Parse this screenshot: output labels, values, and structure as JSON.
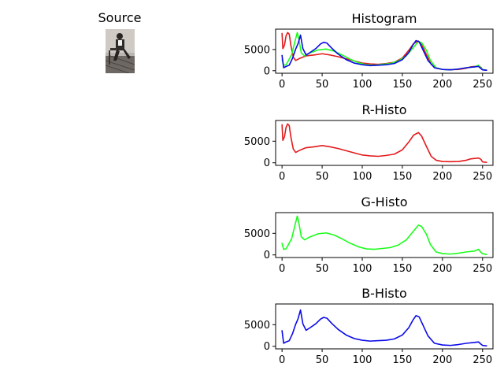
{
  "source": {
    "title": "Source"
  },
  "colors": {
    "red": "#e31a1c",
    "green": "#1aff1a",
    "blue": "#0a0ae8",
    "axis": "#000000"
  },
  "chart_data": [
    {
      "type": "line",
      "title": "Histogram",
      "xlim": [
        -8,
        263
      ],
      "ylim": [
        -600,
        9800
      ],
      "xticks": [
        0,
        50,
        100,
        150,
        200,
        250
      ],
      "yticks": [
        0,
        5000
      ],
      "series": [
        {
          "color": "red",
          "points": [
            [
              0,
              8800
            ],
            [
              1,
              5200
            ],
            [
              3,
              6000
            ],
            [
              5,
              8200
            ],
            [
              7,
              9000
            ],
            [
              9,
              8600
            ],
            [
              11,
              6000
            ],
            [
              14,
              3200
            ],
            [
              17,
              2400
            ],
            [
              22,
              2900
            ],
            [
              30,
              3500
            ],
            [
              40,
              3700
            ],
            [
              50,
              4000
            ],
            [
              60,
              3700
            ],
            [
              70,
              3300
            ],
            [
              80,
              2800
            ],
            [
              90,
              2300
            ],
            [
              100,
              1800
            ],
            [
              110,
              1600
            ],
            [
              120,
              1500
            ],
            [
              130,
              1700
            ],
            [
              140,
              2000
            ],
            [
              150,
              3000
            ],
            [
              158,
              4800
            ],
            [
              164,
              6400
            ],
            [
              170,
              7000
            ],
            [
              174,
              6200
            ],
            [
              180,
              3800
            ],
            [
              186,
              1500
            ],
            [
              192,
              600
            ],
            [
              200,
              300
            ],
            [
              210,
              250
            ],
            [
              220,
              300
            ],
            [
              230,
              600
            ],
            [
              235,
              900
            ],
            [
              240,
              1000
            ],
            [
              245,
              1100
            ],
            [
              248,
              800
            ],
            [
              250,
              200
            ],
            [
              255,
              100
            ]
          ]
        },
        {
          "color": "green",
          "points": [
            [
              0,
              2700
            ],
            [
              2,
              1300
            ],
            [
              5,
              1400
            ],
            [
              8,
              2400
            ],
            [
              12,
              3800
            ],
            [
              16,
              6800
            ],
            [
              19,
              9000
            ],
            [
              21,
              7400
            ],
            [
              24,
              4200
            ],
            [
              28,
              3500
            ],
            [
              35,
              4200
            ],
            [
              45,
              4900
            ],
            [
              55,
              5100
            ],
            [
              65,
              4600
            ],
            [
              75,
              3700
            ],
            [
              85,
              2700
            ],
            [
              95,
              1900
            ],
            [
              105,
              1400
            ],
            [
              115,
              1300
            ],
            [
              125,
              1500
            ],
            [
              135,
              1700
            ],
            [
              145,
              2300
            ],
            [
              155,
              3500
            ],
            [
              163,
              5300
            ],
            [
              170,
              6900
            ],
            [
              174,
              6600
            ],
            [
              180,
              4800
            ],
            [
              185,
              2400
            ],
            [
              192,
              700
            ],
            [
              200,
              300
            ],
            [
              210,
              200
            ],
            [
              220,
              400
            ],
            [
              230,
              700
            ],
            [
              240,
              900
            ],
            [
              245,
              1300
            ],
            [
              248,
              600
            ],
            [
              250,
              300
            ],
            [
              255,
              100
            ]
          ]
        },
        {
          "color": "blue",
          "points": [
            [
              0,
              3600
            ],
            [
              2,
              700
            ],
            [
              5,
              1000
            ],
            [
              9,
              1300
            ],
            [
              13,
              2900
            ],
            [
              17,
              5100
            ],
            [
              20,
              6400
            ],
            [
              23,
              8400
            ],
            [
              26,
              5200
            ],
            [
              30,
              3700
            ],
            [
              35,
              4300
            ],
            [
              42,
              5200
            ],
            [
              48,
              6300
            ],
            [
              52,
              6700
            ],
            [
              56,
              6500
            ],
            [
              62,
              5300
            ],
            [
              70,
              3900
            ],
            [
              80,
              2600
            ],
            [
              90,
              1800
            ],
            [
              100,
              1400
            ],
            [
              110,
              1200
            ],
            [
              120,
              1300
            ],
            [
              130,
              1400
            ],
            [
              140,
              1700
            ],
            [
              150,
              2600
            ],
            [
              158,
              4300
            ],
            [
              163,
              6000
            ],
            [
              167,
              7100
            ],
            [
              171,
              6800
            ],
            [
              176,
              4800
            ],
            [
              182,
              2400
            ],
            [
              190,
              700
            ],
            [
              200,
              300
            ],
            [
              210,
              200
            ],
            [
              220,
              400
            ],
            [
              230,
              700
            ],
            [
              240,
              900
            ],
            [
              245,
              1000
            ],
            [
              248,
              500
            ],
            [
              250,
              200
            ],
            [
              255,
              100
            ]
          ]
        }
      ]
    },
    {
      "type": "line",
      "title": "R-Histo",
      "xlim": [
        -8,
        263
      ],
      "ylim": [
        -600,
        9800
      ],
      "xticks": [
        0,
        50,
        100,
        150,
        200,
        250
      ],
      "yticks": [
        0,
        5000
      ],
      "series": [
        {
          "color": "red",
          "points": [
            [
              0,
              8800
            ],
            [
              1,
              5200
            ],
            [
              3,
              6000
            ],
            [
              5,
              8200
            ],
            [
              7,
              9000
            ],
            [
              9,
              8600
            ],
            [
              11,
              6000
            ],
            [
              14,
              3200
            ],
            [
              17,
              2400
            ],
            [
              22,
              2900
            ],
            [
              30,
              3500
            ],
            [
              40,
              3700
            ],
            [
              50,
              4000
            ],
            [
              60,
              3700
            ],
            [
              70,
              3300
            ],
            [
              80,
              2800
            ],
            [
              90,
              2300
            ],
            [
              100,
              1800
            ],
            [
              110,
              1600
            ],
            [
              120,
              1500
            ],
            [
              130,
              1700
            ],
            [
              140,
              2000
            ],
            [
              150,
              3000
            ],
            [
              158,
              4800
            ],
            [
              164,
              6400
            ],
            [
              170,
              7000
            ],
            [
              174,
              6200
            ],
            [
              180,
              3800
            ],
            [
              186,
              1500
            ],
            [
              192,
              600
            ],
            [
              200,
              300
            ],
            [
              210,
              250
            ],
            [
              220,
              300
            ],
            [
              230,
              600
            ],
            [
              235,
              900
            ],
            [
              240,
              1000
            ],
            [
              245,
              1100
            ],
            [
              248,
              800
            ],
            [
              250,
              200
            ],
            [
              255,
              100
            ]
          ]
        }
      ]
    },
    {
      "type": "line",
      "title": "G-Histo",
      "xlim": [
        -8,
        263
      ],
      "ylim": [
        -600,
        9800
      ],
      "xticks": [
        0,
        50,
        100,
        150,
        200,
        250
      ],
      "yticks": [
        0,
        5000
      ],
      "series": [
        {
          "color": "green",
          "points": [
            [
              0,
              2700
            ],
            [
              2,
              1300
            ],
            [
              5,
              1400
            ],
            [
              8,
              2400
            ],
            [
              12,
              3800
            ],
            [
              16,
              6800
            ],
            [
              19,
              9000
            ],
            [
              21,
              7400
            ],
            [
              24,
              4200
            ],
            [
              28,
              3500
            ],
            [
              35,
              4200
            ],
            [
              45,
              4900
            ],
            [
              55,
              5100
            ],
            [
              65,
              4600
            ],
            [
              75,
              3700
            ],
            [
              85,
              2700
            ],
            [
              95,
              1900
            ],
            [
              105,
              1400
            ],
            [
              115,
              1300
            ],
            [
              125,
              1500
            ],
            [
              135,
              1700
            ],
            [
              145,
              2300
            ],
            [
              155,
              3500
            ],
            [
              163,
              5300
            ],
            [
              170,
              6900
            ],
            [
              174,
              6600
            ],
            [
              180,
              4800
            ],
            [
              185,
              2400
            ],
            [
              192,
              700
            ],
            [
              200,
              300
            ],
            [
              210,
              200
            ],
            [
              220,
              400
            ],
            [
              230,
              700
            ],
            [
              240,
              900
            ],
            [
              245,
              1300
            ],
            [
              248,
              600
            ],
            [
              250,
              300
            ],
            [
              255,
              100
            ]
          ]
        }
      ]
    },
    {
      "type": "line",
      "title": "B-Histo",
      "xlim": [
        -8,
        263
      ],
      "ylim": [
        -600,
        9800
      ],
      "xticks": [
        0,
        50,
        100,
        150,
        200,
        250
      ],
      "yticks": [
        0,
        5000
      ],
      "series": [
        {
          "color": "blue",
          "points": [
            [
              0,
              3600
            ],
            [
              2,
              700
            ],
            [
              5,
              1000
            ],
            [
              9,
              1300
            ],
            [
              13,
              2900
            ],
            [
              17,
              5100
            ],
            [
              20,
              6400
            ],
            [
              23,
              8400
            ],
            [
              26,
              5200
            ],
            [
              30,
              3700
            ],
            [
              35,
              4300
            ],
            [
              42,
              5200
            ],
            [
              48,
              6300
            ],
            [
              52,
              6700
            ],
            [
              56,
              6500
            ],
            [
              62,
              5300
            ],
            [
              70,
              3900
            ],
            [
              80,
              2600
            ],
            [
              90,
              1800
            ],
            [
              100,
              1400
            ],
            [
              110,
              1200
            ],
            [
              120,
              1300
            ],
            [
              130,
              1400
            ],
            [
              140,
              1700
            ],
            [
              150,
              2600
            ],
            [
              158,
              4300
            ],
            [
              163,
              6000
            ],
            [
              167,
              7100
            ],
            [
              171,
              6800
            ],
            [
              176,
              4800
            ],
            [
              182,
              2400
            ],
            [
              190,
              700
            ],
            [
              200,
              300
            ],
            [
              210,
              200
            ],
            [
              220,
              400
            ],
            [
              230,
              700
            ],
            [
              240,
              900
            ],
            [
              245,
              1000
            ],
            [
              248,
              500
            ],
            [
              250,
              200
            ],
            [
              255,
              100
            ]
          ]
        }
      ]
    }
  ]
}
